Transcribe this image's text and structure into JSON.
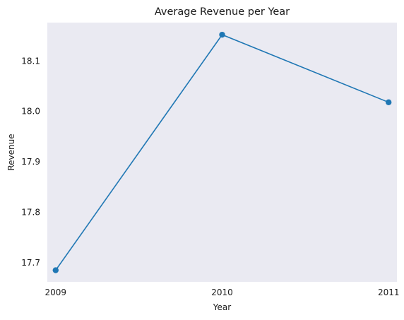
{
  "chart_data": {
    "type": "line",
    "title": "Average Revenue per Year",
    "xlabel": "Year",
    "ylabel": "Revenue",
    "x": [
      2009,
      2010,
      2011
    ],
    "x_tick_labels": [
      "2009",
      "2010",
      "2011"
    ],
    "y_ticks": [
      17.7,
      17.8,
      17.9,
      18.0,
      18.1
    ],
    "y_tick_labels": [
      "17.7",
      "17.8",
      "17.9",
      "18.0",
      "18.1"
    ],
    "ylim": [
      17.662,
      18.176
    ],
    "series": [
      {
        "values": [
          17.685,
          18.152,
          18.018
        ]
      }
    ],
    "grid": false,
    "legend": "none",
    "colors": {
      "background": "#eaeaf2",
      "line": "#1f77b4"
    }
  }
}
